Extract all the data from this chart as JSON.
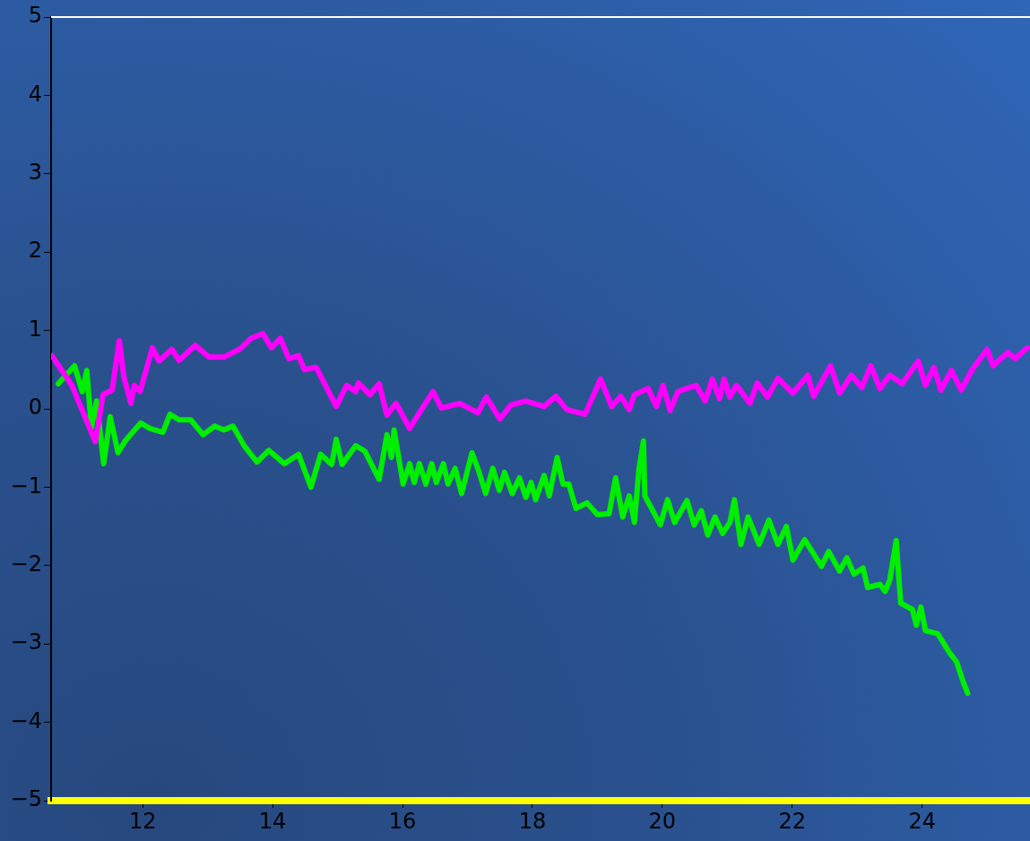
{
  "chart_data": {
    "type": "line",
    "xlim": [
      10.59,
      25.66
    ],
    "ylim": [
      -5,
      5
    ],
    "xticks": [
      12,
      14,
      16,
      18,
      20,
      22,
      24
    ],
    "yticks": [
      {
        "value": -5,
        "label": "−5"
      },
      {
        "value": -4,
        "label": "−4"
      },
      {
        "value": -3,
        "label": "−3"
      },
      {
        "value": -2,
        "label": "−2"
      },
      {
        "value": -1,
        "label": "−1"
      },
      0,
      1,
      2,
      3,
      4,
      5
    ],
    "grid": false,
    "legend": false,
    "ref_lines": [
      {
        "axis": "y",
        "value": 5,
        "color": "#ffffff"
      }
    ],
    "series": [
      {
        "color": "#ff00ff",
        "x": [
          10.6,
          10.91,
          11.27,
          11.39,
          11.53,
          11.64,
          11.71,
          11.82,
          11.87,
          11.96,
          12.15,
          12.25,
          12.45,
          12.56,
          12.81,
          13.02,
          13.25,
          13.49,
          13.67,
          13.85,
          13.98,
          14.12,
          14.25,
          14.4,
          14.49,
          14.67,
          14.98,
          15.14,
          15.28,
          15.32,
          15.5,
          15.64,
          15.76,
          15.9,
          16.11,
          16.29,
          16.47,
          16.6,
          16.88,
          17.16,
          17.29,
          17.5,
          17.67,
          17.9,
          18.18,
          18.36,
          18.53,
          18.81,
          19.05,
          19.22,
          19.36,
          19.49,
          19.57,
          19.78,
          19.91,
          20.01,
          20.12,
          20.24,
          20.52,
          20.66,
          20.77,
          20.88,
          20.95,
          21.04,
          21.14,
          21.35,
          21.46,
          21.62,
          21.78,
          22.01,
          22.24,
          22.33,
          22.59,
          22.73,
          22.91,
          23.07,
          23.21,
          23.35,
          23.5,
          23.69,
          23.94,
          24.05,
          24.18,
          24.29,
          24.45,
          24.6,
          24.77,
          25.0,
          25.09,
          25.32,
          25.43,
          25.62
        ],
        "values": [
          0.68,
          0.3,
          -0.42,
          0.18,
          0.24,
          0.87,
          0.41,
          0.07,
          0.3,
          0.22,
          0.78,
          0.61,
          0.76,
          0.62,
          0.81,
          0.66,
          0.66,
          0.76,
          0.9,
          0.96,
          0.78,
          0.9,
          0.64,
          0.68,
          0.5,
          0.53,
          0.03,
          0.3,
          0.22,
          0.33,
          0.18,
          0.32,
          -0.08,
          0.07,
          -0.25,
          -0.01,
          0.22,
          0.01,
          0.07,
          -0.05,
          0.15,
          -0.13,
          0.05,
          0.1,
          0.03,
          0.16,
          -0.01,
          -0.07,
          0.38,
          0.03,
          0.16,
          -0.01,
          0.18,
          0.26,
          0.03,
          0.3,
          -0.02,
          0.22,
          0.3,
          0.1,
          0.38,
          0.13,
          0.38,
          0.15,
          0.3,
          0.07,
          0.33,
          0.15,
          0.39,
          0.2,
          0.43,
          0.16,
          0.55,
          0.2,
          0.43,
          0.27,
          0.55,
          0.26,
          0.43,
          0.32,
          0.61,
          0.3,
          0.53,
          0.24,
          0.49,
          0.24,
          0.5,
          0.76,
          0.55,
          0.72,
          0.64,
          0.78
        ]
      },
      {
        "color": "#00ee00",
        "x": [
          10.7,
          10.95,
          11.07,
          11.14,
          11.21,
          11.29,
          11.4,
          11.5,
          11.62,
          11.73,
          11.97,
          12.11,
          12.31,
          12.42,
          12.56,
          12.74,
          12.93,
          13.11,
          13.25,
          13.39,
          13.57,
          13.76,
          13.94,
          14.18,
          14.4,
          14.59,
          14.74,
          14.91,
          14.98,
          15.07,
          15.28,
          15.42,
          15.64,
          15.76,
          15.83,
          15.87,
          16.01,
          16.11,
          16.18,
          16.26,
          16.36,
          16.45,
          16.52,
          16.63,
          16.7,
          16.81,
          16.91,
          17.07,
          17.18,
          17.28,
          17.39,
          17.49,
          17.57,
          17.69,
          17.8,
          17.9,
          17.98,
          18.05,
          18.18,
          18.26,
          18.38,
          18.47,
          18.56,
          18.67,
          18.84,
          19.0,
          19.18,
          19.28,
          19.39,
          19.49,
          19.57,
          19.64,
          19.71,
          19.73,
          19.97,
          20.08,
          20.19,
          20.38,
          20.49,
          20.6,
          20.7,
          20.81,
          20.93,
          21.04,
          21.11,
          21.21,
          21.32,
          21.49,
          21.64,
          21.78,
          21.91,
          22.01,
          22.19,
          22.45,
          22.56,
          22.73,
          22.84,
          22.95,
          23.09,
          23.16,
          23.35,
          23.43,
          23.5,
          23.6,
          23.67,
          23.85,
          23.91,
          23.98,
          24.05,
          24.24,
          24.42,
          24.53,
          24.63,
          24.7
        ],
        "values": [
          0.32,
          0.55,
          0.22,
          0.49,
          -0.24,
          0.1,
          -0.7,
          -0.1,
          -0.56,
          -0.41,
          -0.18,
          -0.25,
          -0.3,
          -0.07,
          -0.14,
          -0.14,
          -0.33,
          -0.22,
          -0.27,
          -0.22,
          -0.48,
          -0.68,
          -0.53,
          -0.7,
          -0.58,
          -1.0,
          -0.58,
          -0.71,
          -0.39,
          -0.71,
          -0.47,
          -0.54,
          -0.9,
          -0.33,
          -0.62,
          -0.27,
          -0.96,
          -0.7,
          -0.94,
          -0.7,
          -0.96,
          -0.7,
          -0.94,
          -0.7,
          -0.96,
          -0.76,
          -1.08,
          -0.56,
          -0.81,
          -1.08,
          -0.76,
          -1.04,
          -0.81,
          -1.08,
          -0.88,
          -1.13,
          -0.94,
          -1.16,
          -0.85,
          -1.11,
          -0.62,
          -0.96,
          -0.96,
          -1.27,
          -1.2,
          -1.35,
          -1.34,
          -0.88,
          -1.38,
          -1.11,
          -1.45,
          -0.77,
          -0.41,
          -1.11,
          -1.48,
          -1.16,
          -1.45,
          -1.17,
          -1.48,
          -1.3,
          -1.61,
          -1.38,
          -1.59,
          -1.45,
          -1.16,
          -1.73,
          -1.38,
          -1.73,
          -1.42,
          -1.73,
          -1.5,
          -1.93,
          -1.67,
          -2.01,
          -1.82,
          -2.07,
          -1.9,
          -2.11,
          -2.03,
          -2.28,
          -2.24,
          -2.33,
          -2.19,
          -1.68,
          -2.48,
          -2.56,
          -2.76,
          -2.53,
          -2.83,
          -2.87,
          -3.11,
          -3.23,
          -3.48,
          -3.63
        ]
      }
    ]
  }
}
